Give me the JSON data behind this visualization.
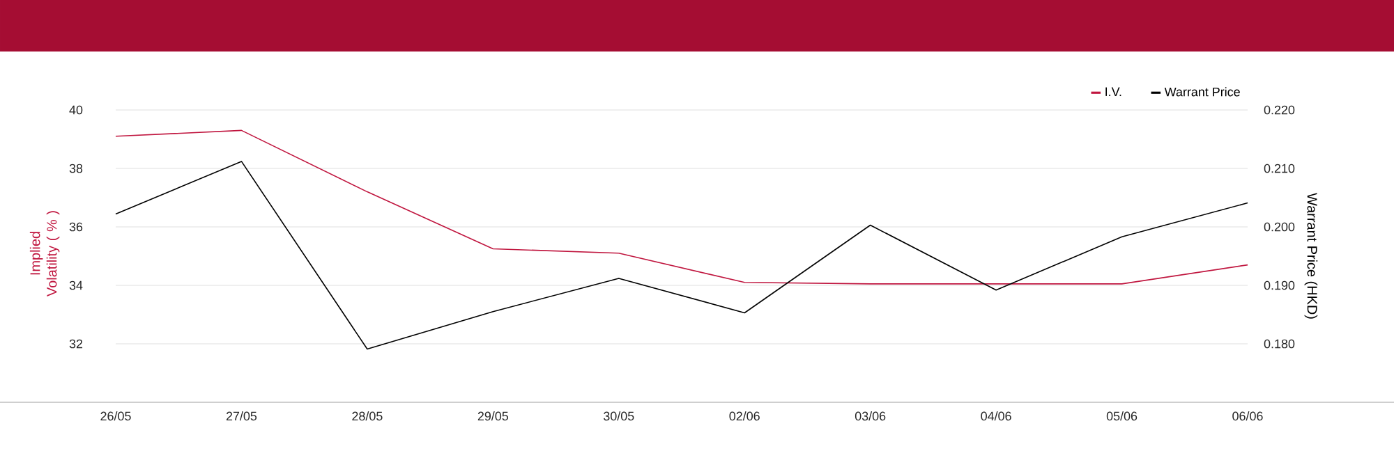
{
  "chart_data": {
    "type": "line",
    "categories": [
      "26/05",
      "27/05",
      "28/05",
      "29/05",
      "30/05",
      "02/06",
      "03/06",
      "04/06",
      "05/06",
      "06/06"
    ],
    "series": [
      {
        "name": "I.V.",
        "color": "#c0163f",
        "values": [
          39.1,
          39.3,
          37.2,
          35.25,
          35.1,
          34.1,
          34.05,
          34.05,
          34.05,
          34.7
        ]
      },
      {
        "name": "Warrant Price",
        "color": "#000000",
        "axis": "y2",
        "values": [
          0.2022,
          0.2112,
          0.1791,
          0.1855,
          0.1912,
          0.1853,
          0.2003,
          0.1892,
          0.1983,
          0.2041
        ]
      }
    ],
    "ylabel": "Implied Volatility ( % )",
    "y2label": "Warrant Price (HKD)",
    "ylim": [
      30,
      40
    ],
    "yticks": [
      32,
      34,
      36,
      38,
      40
    ],
    "y2lim": [
      0.17,
      0.22
    ],
    "y2ticks": [
      {
        "value": 0.18,
        "label": "0.180"
      },
      {
        "value": 0.19,
        "label": "0.190"
      },
      {
        "value": 0.2,
        "label": "0.200"
      },
      {
        "value": 0.21,
        "label": "0.210"
      },
      {
        "value": 0.22,
        "label": "0.220"
      }
    ],
    "grid": "y",
    "legend": "top right",
    "marker": "none",
    "line_style": "solid"
  }
}
